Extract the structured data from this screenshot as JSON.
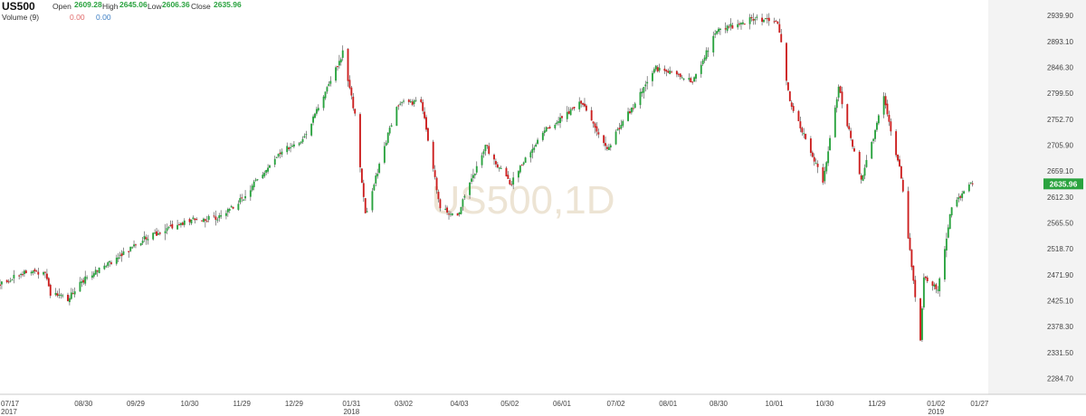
{
  "header": {
    "symbol": "US500",
    "open_label": "Open",
    "open_value": "2609.28",
    "high_label": "High",
    "high_value": "2645.06",
    "low_label": "Low",
    "low_value": "2606.36",
    "close_label": "Close",
    "close_value": "2635.96",
    "volume_label": "Volume (9)",
    "volume_value_1": "0.00",
    "volume_value_2": "0.00"
  },
  "watermark": "US500,1D",
  "colors": {
    "up": "#2aa33f",
    "down": "#cc1f1f",
    "price_tag": "#2aa33f",
    "plot_bg": "#ffffff",
    "future_bg": "#f3f3f3"
  },
  "chart_data": {
    "type": "candlestick",
    "title": "US500",
    "xlabel": "",
    "ylabel": "",
    "ylim": [
      2256,
      2968
    ],
    "x_range": [
      "2017-07-13",
      "2019-02-01"
    ],
    "y_ticks": [
      "2939.90",
      "2893.10",
      "2846.30",
      "2799.50",
      "2752.70",
      "2705.90",
      "2659.10",
      "2612.30",
      "2565.50",
      "2518.70",
      "2471.90",
      "2425.10",
      "2378.30",
      "2331.50",
      "2284.70"
    ],
    "x_ticks": [
      {
        "date": "2017-07-17",
        "label": "07/17",
        "sub": "2017"
      },
      {
        "date": "2017-08-30",
        "label": "08/30",
        "sub": ""
      },
      {
        "date": "2017-09-29",
        "label": "09/29",
        "sub": ""
      },
      {
        "date": "2017-10-30",
        "label": "10/30",
        "sub": ""
      },
      {
        "date": "2017-11-29",
        "label": "11/29",
        "sub": ""
      },
      {
        "date": "2017-12-29",
        "label": "12/29",
        "sub": ""
      },
      {
        "date": "2018-01-31",
        "label": "01/31",
        "sub": "2018"
      },
      {
        "date": "2018-03-02",
        "label": "03/02",
        "sub": ""
      },
      {
        "date": "2018-04-03",
        "label": "04/03",
        "sub": ""
      },
      {
        "date": "2018-05-02",
        "label": "05/02",
        "sub": ""
      },
      {
        "date": "2018-06-01",
        "label": "06/01",
        "sub": ""
      },
      {
        "date": "2018-07-02",
        "label": "07/02",
        "sub": ""
      },
      {
        "date": "2018-08-01",
        "label": "08/01",
        "sub": ""
      },
      {
        "date": "2018-08-30",
        "label": "08/30",
        "sub": ""
      },
      {
        "date": "2018-10-01",
        "label": "10/01",
        "sub": ""
      },
      {
        "date": "2018-10-30",
        "label": "10/30",
        "sub": ""
      },
      {
        "date": "2018-11-29",
        "label": "11/29",
        "sub": ""
      },
      {
        "date": "2019-01-02",
        "label": "01/02",
        "sub": "2019"
      },
      {
        "date": "2019-01-27",
        "label": "01/27",
        "sub": ""
      }
    ],
    "last_price": "2635.96",
    "close_path": [
      [
        "2017-07-13",
        2454
      ],
      [
        "2017-07-24",
        2475
      ],
      [
        "2017-08-08",
        2478
      ],
      [
        "2017-08-11",
        2438
      ],
      [
        "2017-08-21",
        2428
      ],
      [
        "2017-09-01",
        2470
      ],
      [
        "2017-09-20",
        2505
      ],
      [
        "2017-10-05",
        2540
      ],
      [
        "2017-10-30",
        2570
      ],
      [
        "2017-11-15",
        2575
      ],
      [
        "2017-11-29",
        2608
      ],
      [
        "2017-12-20",
        2690
      ],
      [
        "2018-01-04",
        2720
      ],
      [
        "2018-01-26",
        2873
      ],
      [
        "2018-02-02",
        2760
      ],
      [
        "2018-02-08",
        2580
      ],
      [
        "2018-02-26",
        2780
      ],
      [
        "2018-03-12",
        2785
      ],
      [
        "2018-03-23",
        2590
      ],
      [
        "2018-04-02",
        2580
      ],
      [
        "2018-04-18",
        2705
      ],
      [
        "2018-05-02",
        2635
      ],
      [
        "2018-05-21",
        2730
      ],
      [
        "2018-06-12",
        2782
      ],
      [
        "2018-06-27",
        2700
      ],
      [
        "2018-07-25",
        2845
      ],
      [
        "2018-08-15",
        2820
      ],
      [
        "2018-08-29",
        2912
      ],
      [
        "2018-09-20",
        2935
      ],
      [
        "2018-10-03",
        2928
      ],
      [
        "2018-10-10",
        2785
      ],
      [
        "2018-10-29",
        2640
      ],
      [
        "2018-11-07",
        2810
      ],
      [
        "2018-11-20",
        2640
      ],
      [
        "2018-12-03",
        2790
      ],
      [
        "2018-12-13",
        2650
      ],
      [
        "2018-12-24",
        2350
      ],
      [
        "2018-12-26",
        2467
      ],
      [
        "2019-01-03",
        2448
      ],
      [
        "2019-01-11",
        2596
      ],
      [
        "2019-01-23",
        2638
      ]
    ]
  }
}
